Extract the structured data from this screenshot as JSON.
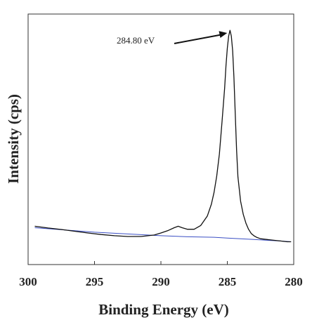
{
  "chart_data": {
    "type": "line",
    "xlabel": "Binding Energy (eV)",
    "ylabel": "Intensity (cps)",
    "xlim": [
      300,
      280
    ],
    "x_reversed": true,
    "x_ticks": [
      "300",
      "295",
      "290",
      "285",
      "280"
    ],
    "y_ticks": [],
    "grid": false,
    "annotations": [
      {
        "text": "284.80 eV",
        "target_x": 284.8,
        "target_y": 0.93
      }
    ],
    "series": [
      {
        "color": "#111111",
        "x": [
          299.5,
          298.5,
          297.5,
          296.5,
          295.5,
          294.5,
          293.5,
          292.5,
          291.5,
          290.5,
          290.0,
          289.5,
          289.0,
          288.7,
          288.4,
          288.0,
          287.5,
          287.0,
          286.5,
          286.2,
          286.0,
          285.8,
          285.6,
          285.4,
          285.2,
          285.1,
          285.0,
          284.9,
          284.8,
          284.7,
          284.6,
          284.5,
          284.4,
          284.3,
          284.2,
          284.0,
          283.8,
          283.6,
          283.4,
          283.2,
          283.0,
          282.8,
          282.5,
          282.0,
          281.5,
          281.0,
          280.5,
          280.2
        ],
        "y": [
          0.153,
          0.146,
          0.14,
          0.133,
          0.126,
          0.12,
          0.115,
          0.112,
          0.112,
          0.118,
          0.126,
          0.135,
          0.147,
          0.153,
          0.147,
          0.141,
          0.141,
          0.156,
          0.194,
          0.241,
          0.288,
          0.353,
          0.441,
          0.568,
          0.705,
          0.794,
          0.864,
          0.912,
          0.935,
          0.912,
          0.853,
          0.747,
          0.6,
          0.456,
          0.35,
          0.253,
          0.2,
          0.165,
          0.141,
          0.124,
          0.115,
          0.109,
          0.103,
          0.1,
          0.097,
          0.094,
          0.091,
          0.091
        ]
      },
      {
        "color": "#3b4fc4",
        "x": [
          299.5,
          295.0,
          290.0,
          288.0,
          286.0,
          285.0,
          284.0,
          283.0,
          282.0,
          281.0,
          280.2
        ],
        "y": [
          0.147,
          0.129,
          0.115,
          0.111,
          0.109,
          0.106,
          0.103,
          0.1,
          0.097,
          0.094,
          0.091
        ]
      }
    ]
  }
}
